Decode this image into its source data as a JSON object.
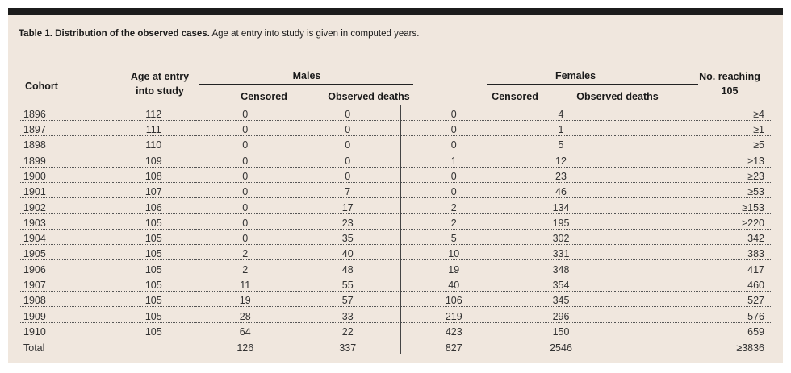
{
  "caption": {
    "bold": "Table 1. Distribution of the observed cases.",
    "text": "Age at entry into study is given in computed years."
  },
  "headers": {
    "cohort": "Cohort",
    "age_line1": "Age at entry",
    "age_line2": "into study",
    "males": "Males",
    "females": "Females",
    "male_censored": "Censored",
    "male_deaths": "Observed deaths",
    "female_censored": "Censored",
    "female_deaths": "Observed deaths",
    "reaching_line1": "No. reaching",
    "reaching_line2": "105"
  },
  "rows": [
    [
      "1896",
      "112",
      "0",
      "0",
      "0",
      "4",
      "≥4"
    ],
    [
      "1897",
      "111",
      "0",
      "0",
      "0",
      "1",
      "≥1"
    ],
    [
      "1898",
      "110",
      "0",
      "0",
      "0",
      "5",
      "≥5"
    ],
    [
      "1899",
      "109",
      "0",
      "0",
      "1",
      "12",
      "≥13"
    ],
    [
      "1900",
      "108",
      "0",
      "0",
      "0",
      "23",
      "≥23"
    ],
    [
      "1901",
      "107",
      "0",
      "7",
      "0",
      "46",
      "≥53"
    ],
    [
      "1902",
      "106",
      "0",
      "17",
      "2",
      "134",
      "≥153"
    ],
    [
      "1903",
      "105",
      "0",
      "23",
      "2",
      "195",
      "≥220"
    ],
    [
      "1904",
      "105",
      "0",
      "35",
      "5",
      "302",
      "342"
    ],
    [
      "1905",
      "105",
      "2",
      "40",
      "10",
      "331",
      "383"
    ],
    [
      "1906",
      "105",
      "2",
      "48",
      "19",
      "348",
      "417"
    ],
    [
      "1907",
      "105",
      "11",
      "55",
      "40",
      "354",
      "460"
    ],
    [
      "1908",
      "105",
      "19",
      "57",
      "106",
      "345",
      "527"
    ],
    [
      "1909",
      "105",
      "28",
      "33",
      "219",
      "296",
      "576"
    ],
    [
      "1910",
      "105",
      "64",
      "22",
      "423",
      "150",
      "659"
    ],
    [
      "Total",
      "",
      "126",
      "337",
      "827",
      "2546",
      "≥3836"
    ]
  ]
}
